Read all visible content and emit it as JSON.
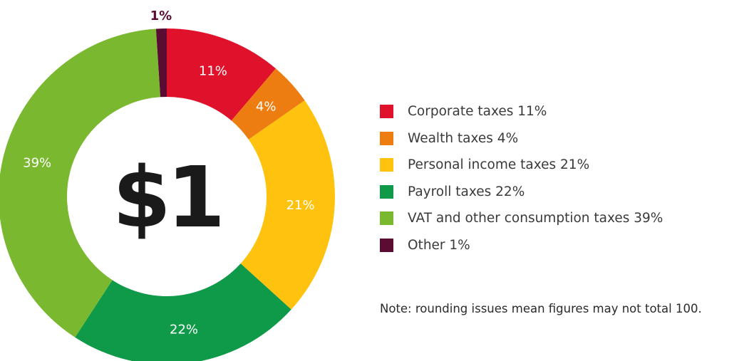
{
  "chart_data": {
    "type": "pie",
    "center_label": "$1",
    "slices": [
      {
        "name": "Corporate taxes",
        "value": 11,
        "label": "11%",
        "legend": "Corporate taxes 11%",
        "color": "#e0112b",
        "label_color": "#ffffff"
      },
      {
        "name": "Wealth taxes",
        "value": 4,
        "label": "4%",
        "legend": "Wealth taxes 4%",
        "color": "#ee7d11",
        "label_color": "#ffffff"
      },
      {
        "name": "Personal income taxes",
        "value": 21,
        "label": "21%",
        "legend": "Personal income taxes 21%",
        "color": "#ffc20e",
        "label_color": "#ffffff"
      },
      {
        "name": "Payroll taxes",
        "value": 22,
        "label": "22%",
        "legend": "Payroll taxes 22%",
        "color": "#0e9a48",
        "label_color": "#ffffff"
      },
      {
        "name": "VAT and other consumption taxes",
        "value": 39,
        "label": "39%",
        "legend": "VAT and other consumption taxes 39%",
        "color": "#79b82f",
        "label_color": "#ffffff"
      },
      {
        "name": "Other",
        "value": 1,
        "label": "1%",
        "legend": "Other 1%",
        "color": "#5b0c33",
        "label_color": "#5b0c33"
      }
    ],
    "note": "Note: rounding issues mean figures may not total 100.",
    "legend_position": "right"
  }
}
